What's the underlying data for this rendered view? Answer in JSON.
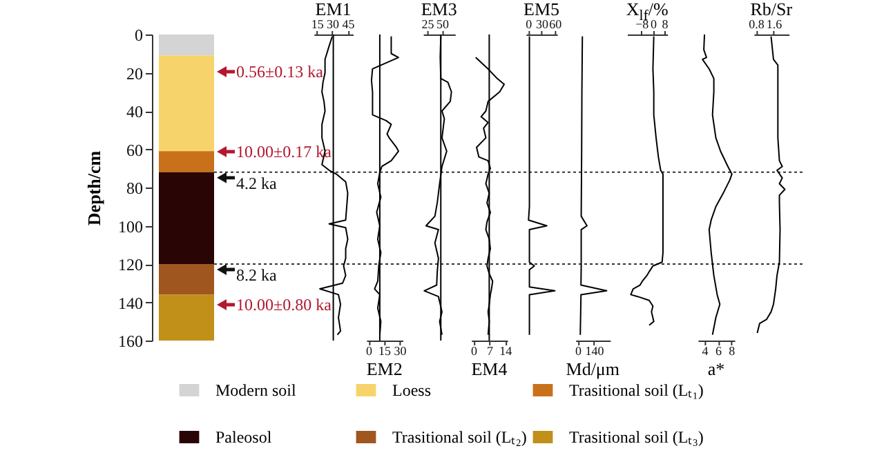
{
  "chart_data": [
    {
      "type": "bar",
      "stacked": true,
      "categories": [
        null
      ],
      "ylabel": "Depth/cm",
      "ylim": [
        160,
        0
      ],
      "yticks": [
        0,
        20,
        40,
        60,
        80,
        100,
        120,
        140,
        160
      ],
      "legend": "bottom",
      "series": [
        {
          "name": "Modern soil",
          "color": "#d4d4d4",
          "values": [
            11
          ]
        },
        {
          "name": "Loess",
          "color": "#f7d46b",
          "values": [
            50
          ]
        },
        {
          "name": "Trasitional soil (Lₜ₁)",
          "color": "#c8701a",
          "values": [
            11
          ]
        },
        {
          "name": "Paleosol",
          "color": "#2a0505",
          "values": [
            48
          ]
        },
        {
          "name": "Trasitional soil (Lₜ₂)",
          "color": "#a0561f",
          "values": [
            16
          ]
        },
        {
          "name": "Trasitional soil (Lₜ₃)",
          "color": "#c09018",
          "values": [
            24
          ]
        }
      ],
      "annotations": [
        "0.56±0.13 ka",
        "10.00±0.17 ka",
        "10.00±0.80 ka"
      ],
      "ref_lines": [
        {
          "axis": "y",
          "value": 72,
          "label": "4.2 ka",
          "line_style": "dotted"
        },
        {
          "axis": "y",
          "value": 120,
          "label": "8.2 ka",
          "line_style": "dotted"
        }
      ]
    },
    {
      "type": "line",
      "xlabel": "EM1",
      "xlim": [
        12,
        50
      ],
      "xticks": [
        15,
        30,
        45
      ],
      "ylim": [
        160,
        0
      ],
      "tick_labels": "x",
      "ref_lines": [
        {
          "axis": "x",
          "value": 31
        }
      ],
      "series": [
        {
          "color": "#000000",
          "x": [
            30,
            27,
            23,
            23,
            21,
            20,
            22,
            23,
            20,
            20,
            23,
            20,
            27,
            34,
            43,
            45,
            44,
            43,
            27,
            43,
            45,
            43,
            43,
            41,
            43,
            40,
            18,
            36,
            38,
            36,
            38,
            35
          ],
          "values": [
            1,
            6,
            13,
            20,
            25,
            30,
            35,
            40,
            47,
            54,
            61,
            68,
            71,
            73,
            77,
            83,
            90,
            97,
            99,
            101,
            107,
            112,
            117,
            121,
            126,
            130,
            133,
            136,
            141,
            148,
            155,
            157
          ]
        }
      ]
    },
    {
      "type": "line",
      "xlabel": "EM2",
      "xlim": [
        -2,
        33
      ],
      "xticks": [
        0,
        15,
        30
      ],
      "ylim": [
        160,
        0
      ],
      "tick_labels": "x",
      "ref_lines": [
        {
          "axis": "x",
          "value": 11
        }
      ],
      "series": [
        {
          "color": "#000000",
          "x": [
            22,
            22,
            29,
            4,
            3,
            4,
            4,
            4,
            17,
            22,
            18,
            20,
            27,
            29,
            22,
            13,
            11,
            9,
            12,
            8,
            11,
            9,
            12,
            10,
            9,
            6,
            11,
            9,
            12,
            11
          ],
          "values": [
            1,
            10,
            12,
            18,
            24,
            30,
            36,
            42,
            45,
            47,
            52,
            54,
            59,
            61,
            66,
            69,
            72,
            78,
            85,
            93,
            100,
            107,
            114,
            121,
            129,
            133,
            136,
            143,
            150,
            157
          ]
        }
      ]
    },
    {
      "type": "line",
      "xlabel": "EM3",
      "xlim": [
        18,
        72
      ],
      "xticks": [
        25,
        50
      ],
      "ylim": [
        160,
        0
      ],
      "tick_labels": "x",
      "ref_lines": [
        {
          "axis": "x",
          "value": 48
        }
      ],
      "series": [
        {
          "color": "#000000",
          "x": [
            48,
            47,
            48,
            60,
            66,
            64,
            50,
            54,
            50,
            58,
            50,
            46,
            42,
            38,
            23,
            44,
            38,
            44,
            42,
            41,
            20,
            44,
            50,
            46,
            50
          ],
          "values": [
            1,
            12,
            23,
            25,
            30,
            35,
            40,
            44,
            54,
            61,
            69,
            78,
            88,
            95,
            100,
            102,
            109,
            117,
            124,
            131,
            134,
            137,
            145,
            150,
            157
          ]
        }
      ]
    },
    {
      "type": "line",
      "xlabel": "EM4",
      "xlim": [
        -1,
        15
      ],
      "xticks": [
        0,
        7,
        14
      ],
      "ylim": [
        160,
        0
      ],
      "tick_labels": "x",
      "ref_lines": [
        {
          "axis": "x",
          "value": 7
        }
      ],
      "series": [
        {
          "color": "#000000",
          "x": [
            1,
            6.5,
            10.5,
            13.6,
            11.6,
            6.5,
            5.5,
            3.4,
            6.5,
            4.5,
            5.5,
            1.4,
            2.4,
            6.5,
            7.5,
            6.5,
            5.5,
            7,
            6,
            7.5,
            6,
            5.5,
            7,
            7.5,
            6.5,
            6,
            7,
            8.5,
            8,
            7.5,
            7,
            6.5,
            7,
            6.5
          ],
          "values": [
            12,
            18,
            23,
            26,
            30,
            35,
            40,
            43,
            46,
            49,
            54,
            59,
            64,
            66,
            70,
            73,
            78,
            83,
            88,
            93,
            98,
            102,
            107,
            112,
            117,
            121,
            125,
            129,
            133,
            136,
            141,
            145,
            150,
            157
          ]
        }
      ]
    },
    {
      "type": "line",
      "xlabel": "EM5",
      "xlim": [
        -5,
        65
      ],
      "xticks": [
        0,
        30,
        60
      ],
      "ylim": [
        160,
        0
      ],
      "tick_labels": "x",
      "series": [
        {
          "color": "#000000",
          "x": [
            3,
            3,
            3,
            3,
            1,
            42,
            3,
            3,
            3,
            14,
            3,
            3,
            60,
            3,
            3,
            3
          ],
          "values": [
            1,
            30,
            60,
            90,
            97,
            100,
            102,
            110,
            119,
            121,
            123,
            132,
            134,
            136,
            145,
            157
          ]
        }
      ]
    },
    {
      "type": "line",
      "xlabel": "Md/μm",
      "xlim": [
        -20,
        280
      ],
      "xticks": [
        0,
        140
      ],
      "ylim": [
        160,
        0
      ],
      "tick_labels": "x",
      "series": [
        {
          "color": "#000000",
          "x": [
            40,
            36,
            34,
            30,
            80,
            30,
            30,
            28,
            250,
            28,
            22
          ],
          "values": [
            1,
            30,
            60,
            95,
            100,
            102,
            121,
            131,
            134,
            136,
            157
          ]
        }
      ]
    },
    {
      "type": "line",
      "xlabel": "X$_{lf}$/%",
      "xlim": [
        -18,
        10
      ],
      "xticks": [
        -8,
        0,
        8
      ],
      "ylim": [
        160,
        0
      ],
      "tick_labels": "x",
      "series": [
        {
          "color": "#000000",
          "x": [
            0.6,
            0,
            0.6,
            0.6,
            2.2,
            3.8,
            5.4,
            7,
            7,
            7,
            6.4,
            0,
            -2.6,
            -4.2,
            -7.4,
            -9,
            -13.8,
            -15.4,
            -10.6,
            -2.6,
            0,
            -1,
            0.6,
            -2.6
          ],
          "values": [
            1,
            18,
            30,
            42,
            54,
            64,
            71,
            73,
            90,
            114,
            119,
            121,
            124,
            126,
            129,
            131,
            133,
            136,
            137,
            139,
            142,
            145,
            150,
            152
          ]
        }
      ]
    },
    {
      "type": "line",
      "xlabel": "a*",
      "xlim": [
        3,
        8.5
      ],
      "xticks": [
        4,
        6,
        8
      ],
      "ylim": [
        160,
        0
      ],
      "tick_labels": "x",
      "series": [
        {
          "color": "#000000",
          "x": [
            4,
            3.9,
            4.3,
            3.7,
            4.7,
            5.4,
            5.4,
            5.2,
            5.7,
            6.4,
            7.5,
            8.1,
            7.8,
            6.8,
            5.7,
            5,
            4.7,
            5,
            5.4,
            5.9,
            6.3,
            5.7,
            5.2
          ],
          "values": [
            0,
            8,
            12,
            13,
            18,
            23,
            30,
            42,
            54,
            61,
            69,
            73,
            76,
            83,
            90,
            97,
            102,
            114,
            126,
            136,
            141,
            148,
            157
          ]
        }
      ]
    },
    {
      "type": "line",
      "xlabel": "Rb/Sr",
      "xlim": [
        0.7,
        2.3
      ],
      "xticks": [
        0.8,
        1.6
      ],
      "ylim": [
        160,
        0
      ],
      "tick_labels": "x",
      "series": [
        {
          "color": "#000000",
          "x": [
            1.49,
            1.6,
            1.8,
            1.8,
            1.87,
            2.0,
            1.76,
            2.0,
            1.87,
            2.12,
            1.87,
            1.87,
            1.9,
            1.87,
            1.76,
            1.7,
            1.6,
            1.49,
            1.28,
            0.97,
            0.86
          ],
          "values": [
            1,
            13,
            16,
            54,
            66,
            69,
            71,
            75,
            78,
            81,
            84,
            88,
            102,
            119,
            126,
            133,
            141,
            145,
            149,
            151,
            156
          ]
        }
      ]
    }
  ]
}
